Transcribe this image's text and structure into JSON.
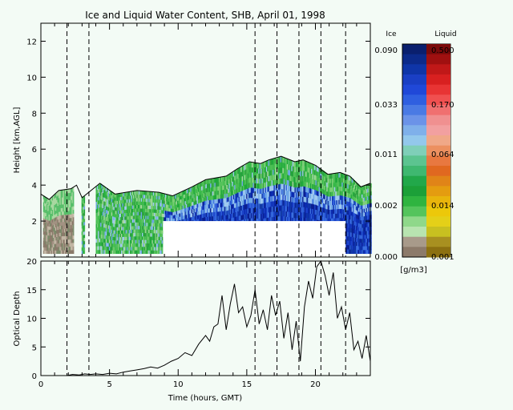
{
  "chart_data": [
    {
      "type": "heatmap",
      "title": "Ice and Liquid Water Content, SHB, April 01, 1998",
      "ylabel": "Height [km,AGL]",
      "xlim": [
        0,
        24
      ],
      "ylim": [
        0,
        13
      ],
      "y_ticks": [
        "2",
        "4",
        "6",
        "8",
        "10",
        "12"
      ],
      "vertical_dashed_lines_hours": [
        1.9,
        3.5,
        15.6,
        17.2,
        18.8,
        20.4,
        22.2
      ],
      "missing_data_block": {
        "x_from_hours": 8.9,
        "x_to_hours": 22.2,
        "height_from_km": 0,
        "height_to_km": 2.0
      },
      "cloud_top_km": [
        [
          0,
          3.5
        ],
        [
          0.6,
          3.2
        ],
        [
          1.3,
          3.7
        ],
        [
          2.2,
          3.8
        ],
        [
          2.6,
          4.0
        ],
        [
          3.0,
          3.3
        ],
        [
          4.3,
          4.1
        ],
        [
          5.4,
          3.5
        ],
        [
          7.0,
          3.7
        ],
        [
          8.6,
          3.6
        ],
        [
          9.6,
          3.4
        ],
        [
          11.0,
          3.9
        ],
        [
          12.0,
          4.3
        ],
        [
          13.5,
          4.5
        ],
        [
          14.3,
          4.9
        ],
        [
          15.2,
          5.3
        ],
        [
          16.0,
          5.2
        ],
        [
          16.6,
          5.4
        ],
        [
          17.5,
          5.6
        ],
        [
          18.5,
          5.3
        ],
        [
          19.1,
          5.4
        ],
        [
          20.0,
          5.1
        ],
        [
          20.9,
          4.6
        ],
        [
          21.8,
          4.7
        ],
        [
          22.5,
          4.5
        ],
        [
          23.3,
          3.9
        ],
        [
          24.0,
          4.1
        ]
      ],
      "colorbar": {
        "ice_label": "Ice",
        "liquid_label": "Liquid",
        "units": "[g/m3]",
        "ice_ticks": [
          "0.090",
          "0.033",
          "0.011",
          "0.002",
          "0.000"
        ],
        "liquid_ticks": [
          "0.500",
          "0.170",
          "0.064",
          "0.014",
          "0.001"
        ]
      }
    },
    {
      "type": "line",
      "ylabel": "Optical Depth",
      "xlabel": "Time (hours, GMT)",
      "xlim": [
        0,
        24
      ],
      "ylim": [
        0,
        20
      ],
      "x_ticks": [
        "0",
        "5",
        "10",
        "15",
        "20"
      ],
      "y_ticks": [
        "0",
        "5",
        "10",
        "15",
        "20"
      ],
      "vertical_dashed_lines_hours": [
        1.9,
        3.5,
        15.6,
        17.2,
        18.8,
        20.4,
        22.2
      ],
      "x": [
        0,
        0.5,
        1.0,
        1.5,
        1.9,
        2.3,
        2.8,
        3.2,
        3.6,
        4.0,
        4.5,
        5.0,
        5.5,
        6.0,
        6.5,
        7.0,
        7.5,
        8.0,
        8.5,
        9.0,
        9.5,
        10.0,
        10.5,
        11.0,
        11.5,
        12.0,
        12.3,
        12.6,
        12.9,
        13.2,
        13.5,
        13.8,
        14.1,
        14.4,
        14.7,
        15.0,
        15.3,
        15.6,
        15.9,
        16.2,
        16.5,
        16.8,
        17.1,
        17.4,
        17.7,
        18.0,
        18.3,
        18.6,
        18.9,
        19.2,
        19.5,
        19.8,
        20.1,
        20.4,
        20.7,
        21.0,
        21.3,
        21.6,
        21.9,
        22.2,
        22.5,
        22.8,
        23.1,
        23.4,
        23.7,
        24.0
      ],
      "values": [
        0,
        0,
        0,
        0,
        0,
        0.2,
        0.1,
        0.3,
        0.2,
        0.3,
        0.2,
        0.4,
        0.3,
        0.6,
        0.8,
        1.0,
        1.2,
        1.5,
        1.3,
        1.8,
        2.5,
        3.0,
        4.0,
        3.5,
        5.5,
        7.0,
        6.0,
        8.5,
        9.0,
        14.0,
        8.0,
        12.5,
        16.0,
        11.0,
        12.0,
        8.5,
        10.5,
        15.0,
        9.0,
        11.5,
        8.0,
        14.0,
        10.5,
        13.0,
        6.5,
        11.0,
        4.5,
        9.5,
        2.5,
        12.0,
        16.5,
        13.5,
        19.0,
        20.0,
        17.5,
        14.0,
        18.0,
        10.0,
        12.0,
        8.0,
        11.0,
        4.5,
        6.0,
        3.0,
        7.0,
        2.5
      ]
    }
  ]
}
